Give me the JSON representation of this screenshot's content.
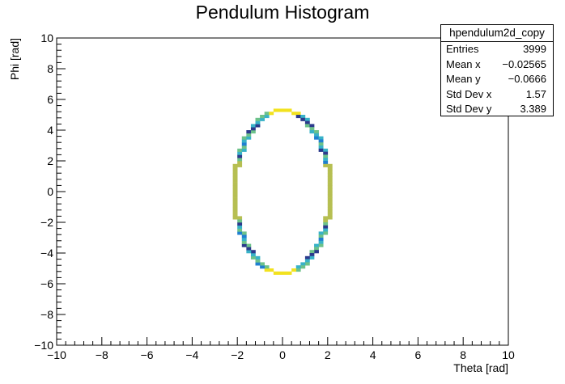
{
  "chart_data": {
    "type": "heatmap",
    "title": "Pendulum Histogram",
    "xlabel": "Theta [rad]",
    "ylabel": "Phi [rad]",
    "xlim": [
      -10,
      10
    ],
    "ylim": [
      -10,
      10
    ],
    "xticks": [
      "−10",
      "−8",
      "−6",
      "−4",
      "−2",
      "0",
      "2",
      "4",
      "6",
      "8",
      "10"
    ],
    "yticks": [
      "−10",
      "−8",
      "−6",
      "−4",
      "−2",
      "0",
      "2",
      "4",
      "6",
      "8",
      "10"
    ],
    "bin_width": 0.2,
    "color_scale": [
      "#2c3a8c",
      "#1f7fd1",
      "#38b2c8",
      "#6dc28a",
      "#b6bf52",
      "#f2e21e"
    ],
    "contour": {
      "description_values_only": false,
      "theta_amplitude": 2.1,
      "phi_amplitude": 5.3
    },
    "stats": {
      "name": "hpendulum2d_copy",
      "rows": [
        {
          "label": "Entries",
          "value": "3999"
        },
        {
          "label": "Mean x",
          "value": "−0.02565"
        },
        {
          "label": "Mean y",
          "value": "−0.0666"
        },
        {
          "label": "Std Dev x",
          "value": "1.57"
        },
        {
          "label": "Std Dev y",
          "value": "3.389"
        }
      ]
    }
  }
}
